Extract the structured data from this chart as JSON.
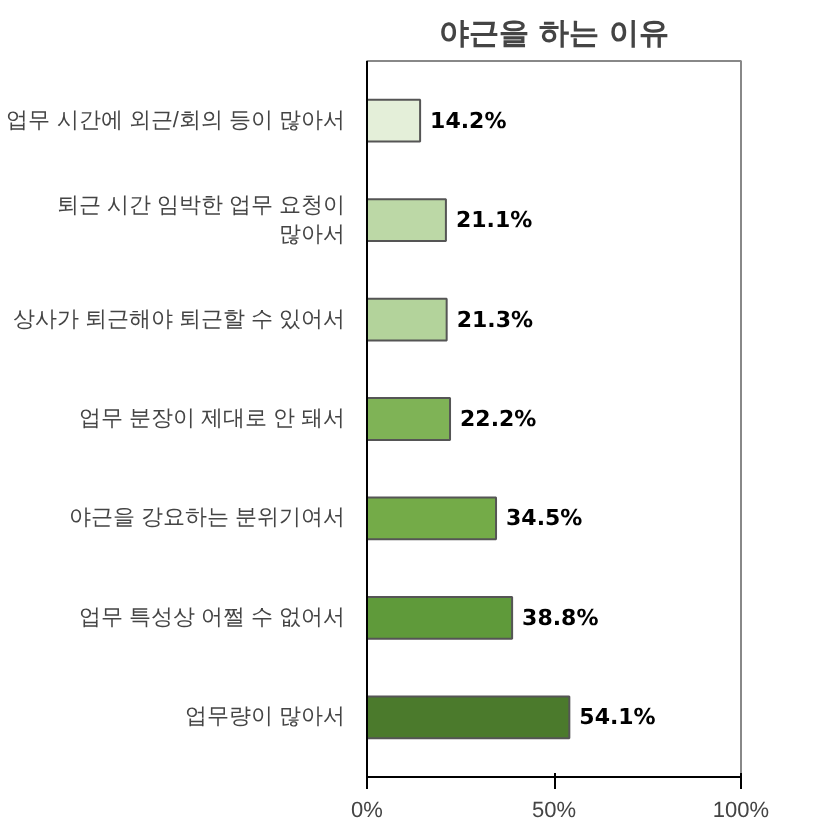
{
  "chart_data": {
    "type": "bar",
    "orientation": "horizontal",
    "title": "야근을 하는 이유",
    "categories": [
      "업무 시간에 외근/회의 등이 많아서",
      "퇴근 시간 임박한 업무 요청이\n많아서",
      "상사가 퇴근해야 퇴근할 수 있어서",
      "업무 분장이 제대로 안 돼서",
      "야근을 강요하는 분위기여서",
      "업무 특성상 어쩔 수 없어서",
      "업무량이 많아서"
    ],
    "values": [
      14.2,
      21.1,
      21.3,
      22.2,
      34.5,
      38.8,
      54.1
    ],
    "value_labels": [
      "14.2%",
      "21.1%",
      "21.3%",
      "22.2%",
      "34.5%",
      "38.8%",
      "54.1%"
    ],
    "colors": [
      "#e4efd9",
      "#bcd8a6",
      "#b3d39b",
      "#7fb356",
      "#74ab48",
      "#5f9a3a",
      "#4b7a2c"
    ],
    "xlim": [
      0,
      100
    ],
    "xticks": [
      {
        "value": 0,
        "label": "0%"
      },
      {
        "value": 50,
        "label": "50%"
      },
      {
        "value": 100,
        "label": "100%"
      }
    ],
    "grid": false
  }
}
